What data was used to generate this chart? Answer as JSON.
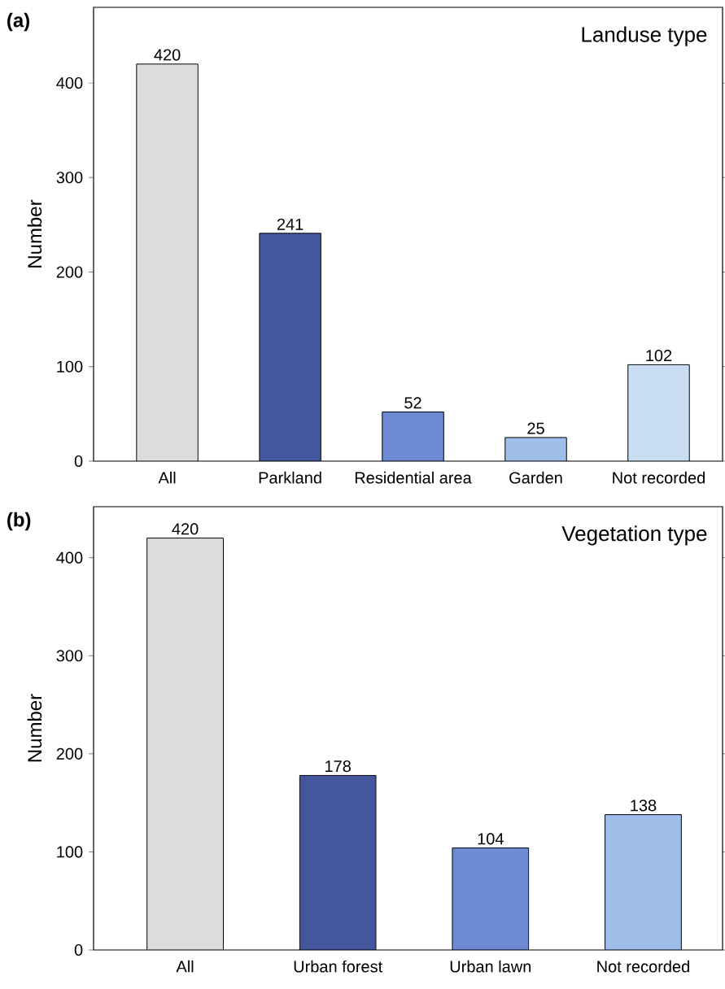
{
  "chart_data": [
    {
      "type": "bar",
      "title": "Landuse type",
      "ylabel": "Number",
      "annotations": [
        "(a)"
      ],
      "categories": [
        "All",
        "Parkland",
        "Residential area",
        "Garden",
        "Not recorded"
      ],
      "values": [
        420,
        241,
        52,
        25,
        102
      ],
      "colors": [
        "#dcdcdc",
        "#44579e",
        "#6e8ad4",
        "#9ebde8",
        "#c9ddf3"
      ],
      "ylim": [
        0,
        480
      ],
      "yticks": [
        0,
        100,
        200,
        300,
        400
      ],
      "data_labels": true,
      "grid": false
    },
    {
      "type": "bar",
      "title": "Vegetation type",
      "ylabel": "Number",
      "annotations": [
        "(b)"
      ],
      "categories": [
        "All",
        "Urban forest",
        "Urban lawn",
        "Not recorded"
      ],
      "values": [
        420,
        178,
        104,
        138
      ],
      "colors": [
        "#dcdcdc",
        "#44579e",
        "#6e8ad4",
        "#9ebde8"
      ],
      "ylim": [
        0,
        452
      ],
      "yticks": [
        0,
        100,
        200,
        300,
        400
      ],
      "data_labels": true,
      "grid": false
    }
  ]
}
